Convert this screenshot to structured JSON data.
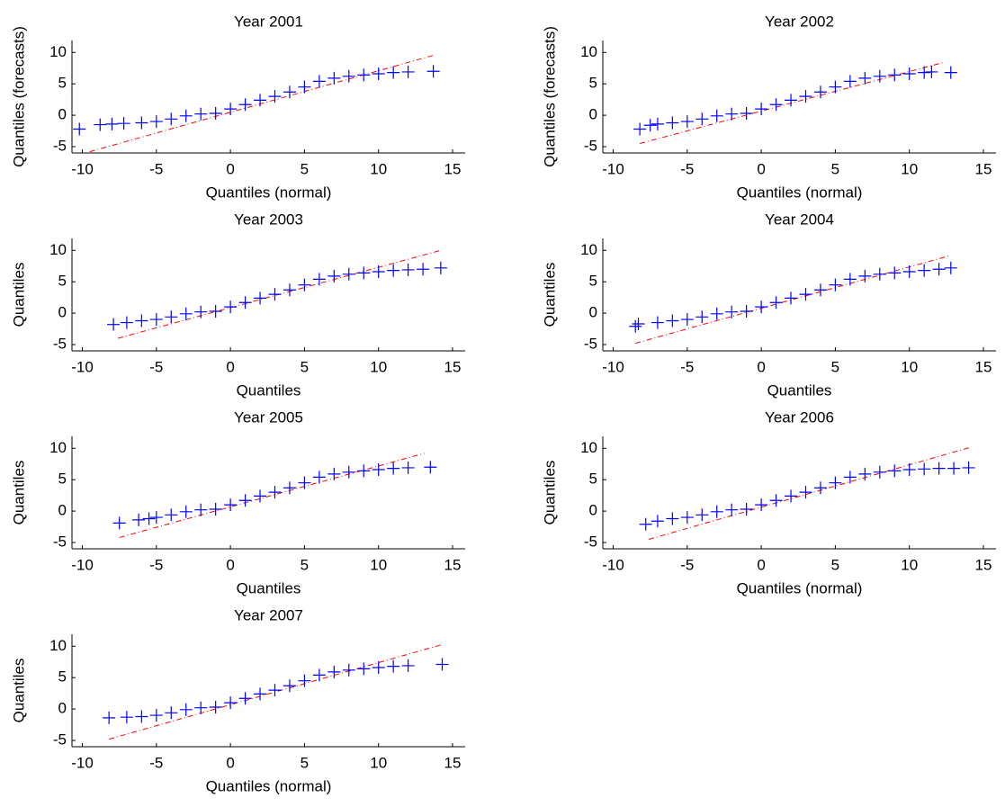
{
  "chart_data": [
    {
      "type": "qq",
      "title": "Year 2001",
      "xlabel": "Quantiles (normal)",
      "ylabel": "Quantiles (forecasts)",
      "x": [
        -10.2,
        -8.8,
        -8.0,
        -7.2,
        -6.0,
        -5.0,
        -4.0,
        -3.0,
        -2.0,
        -1.0,
        0,
        1,
        2,
        3,
        4,
        5,
        6,
        7,
        8,
        9,
        10,
        11,
        12,
        13.7
      ],
      "y": [
        -2.2,
        -1.5,
        -1.4,
        -1.3,
        -1.2,
        -1.0,
        -0.6,
        -0.1,
        0.2,
        0.3,
        1.0,
        1.7,
        2.4,
        3.0,
        3.7,
        4.5,
        5.4,
        5.9,
        6.2,
        6.4,
        6.6,
        6.8,
        6.9,
        7.0
      ],
      "reference_line": {
        "x": [
          -9.5,
          13.8
        ],
        "y": [
          -5.8,
          9.6
        ],
        "color": "#ff0000"
      },
      "color": "#0000ff",
      "xlim": [
        -10.7,
        15.85
      ],
      "ylim": [
        -6,
        11.9
      ],
      "xticks": [
        -10,
        -5,
        0,
        5,
        10,
        15
      ],
      "yticks": [
        -5,
        0,
        5,
        10
      ]
    },
    {
      "type": "qq",
      "title": "Year 2002",
      "xlabel": "Quantiles (normal)",
      "ylabel": "Quantiles (forecasts)",
      "x": [
        -8.2,
        -7.5,
        -7.0,
        -6.0,
        -5.0,
        -4.0,
        -3.0,
        -2.0,
        -1.0,
        0,
        1,
        2,
        3,
        4,
        5,
        6,
        7,
        8,
        9,
        10,
        11,
        11.5,
        12.8
      ],
      "y": [
        -2.2,
        -1.6,
        -1.4,
        -1.2,
        -1.0,
        -0.6,
        -0.1,
        0.2,
        0.3,
        1.0,
        1.7,
        2.4,
        3.0,
        3.7,
        4.5,
        5.4,
        5.9,
        6.2,
        6.4,
        6.6,
        6.8,
        6.9,
        6.8
      ],
      "reference_line": {
        "x": [
          -8.2,
          12.3
        ],
        "y": [
          -4.5,
          8.4
        ],
        "color": "#ff0000"
      },
      "color": "#0000ff",
      "xlim": [
        -10.7,
        15.85
      ],
      "ylim": [
        -6,
        11.9
      ],
      "xticks": [
        -10,
        -5,
        0,
        5,
        10,
        15
      ],
      "yticks": [
        -5,
        0,
        5,
        10
      ]
    },
    {
      "type": "qq",
      "title": "Year 2003",
      "xlabel": "Quantiles",
      "ylabel": "Quantiles",
      "x": [
        -7.9,
        -7.0,
        -6.0,
        -5.0,
        -4.0,
        -3.0,
        -2.0,
        -1.0,
        0,
        1,
        2,
        3,
        4,
        5,
        6,
        7,
        8,
        9,
        10,
        11,
        12,
        13,
        14.2
      ],
      "y": [
        -1.8,
        -1.5,
        -1.2,
        -1.0,
        -0.6,
        -0.1,
        0.2,
        0.3,
        1.0,
        1.7,
        2.4,
        3.0,
        3.7,
        4.5,
        5.4,
        5.9,
        6.2,
        6.4,
        6.6,
        6.8,
        6.9,
        7.0,
        7.2
      ],
      "reference_line": {
        "x": [
          -7.6,
          14.2
        ],
        "y": [
          -4,
          10
        ],
        "color": "#ff0000"
      },
      "color": "#0000ff",
      "xlim": [
        -10.7,
        15.85
      ],
      "ylim": [
        -6,
        11.9
      ],
      "xticks": [
        -10,
        -5,
        0,
        5,
        10,
        15
      ],
      "yticks": [
        -5,
        0,
        5,
        10
      ]
    },
    {
      "type": "qq",
      "title": "Year 2004",
      "xlabel": "Quantiles",
      "ylabel": "Quantiles",
      "x": [
        -8.5,
        -8.3,
        -7.0,
        -6.0,
        -5.0,
        -4.0,
        -3.0,
        -2.0,
        -1.0,
        0,
        1,
        2,
        3,
        4,
        5,
        6,
        7,
        8,
        9,
        10,
        11,
        12,
        12.8
      ],
      "y": [
        -2.1,
        -1.7,
        -1.5,
        -1.2,
        -1.0,
        -0.6,
        -0.1,
        0.2,
        0.3,
        1.0,
        1.7,
        2.4,
        3.0,
        3.7,
        4.5,
        5.4,
        5.9,
        6.2,
        6.4,
        6.6,
        6.8,
        7.0,
        7.2
      ],
      "reference_line": {
        "x": [
          -8.5,
          12.8
        ],
        "y": [
          -4.8,
          9.2
        ],
        "color": "#ff0000"
      },
      "color": "#0000ff",
      "xlim": [
        -10.7,
        15.85
      ],
      "ylim": [
        -6,
        11.9
      ],
      "xticks": [
        -10,
        -5,
        0,
        5,
        10,
        15
      ],
      "yticks": [
        -5,
        0,
        5,
        10
      ]
    },
    {
      "type": "qq",
      "title": "Year 2005",
      "xlabel": "Quantiles",
      "ylabel": "Quantiles",
      "x": [
        -7.5,
        -6.2,
        -5.5,
        -5.0,
        -4.0,
        -3.0,
        -2.0,
        -1.0,
        0,
        1,
        2,
        3,
        4,
        5,
        6,
        7,
        8,
        9,
        10,
        11,
        12,
        13.5
      ],
      "y": [
        -1.9,
        -1.4,
        -1.2,
        -1.0,
        -0.6,
        -0.1,
        0.2,
        0.3,
        1.0,
        1.7,
        2.4,
        3.0,
        3.7,
        4.5,
        5.4,
        5.9,
        6.2,
        6.4,
        6.6,
        6.8,
        6.9,
        7.0
      ],
      "reference_line": {
        "x": [
          -7.5,
          13.1
        ],
        "y": [
          -4.2,
          9.2
        ],
        "color": "#ff0000"
      },
      "color": "#0000ff",
      "xlim": [
        -10.7,
        15.85
      ],
      "ylim": [
        -6,
        11.9
      ],
      "xticks": [
        -10,
        -5,
        0,
        5,
        10,
        15
      ],
      "yticks": [
        -5,
        0,
        5,
        10
      ]
    },
    {
      "type": "qq",
      "title": "Year 2006",
      "xlabel": "Quantiles (normal)",
      "ylabel": "Quantiles",
      "x": [
        -7.8,
        -7.0,
        -6.0,
        -5.0,
        -4.0,
        -3.0,
        -2.0,
        -1.0,
        0,
        1,
        2,
        3,
        4,
        5,
        6,
        7,
        8,
        9,
        10,
        11,
        12,
        13,
        14.0
      ],
      "y": [
        -2.1,
        -1.6,
        -1.2,
        -1.0,
        -0.6,
        -0.1,
        0.2,
        0.3,
        1.0,
        1.7,
        2.4,
        3.0,
        3.7,
        4.5,
        5.4,
        5.9,
        6.2,
        6.4,
        6.6,
        6.7,
        6.8,
        6.8,
        6.9
      ],
      "reference_line": {
        "x": [
          -7.6,
          14.2
        ],
        "y": [
          -4.5,
          10.2
        ],
        "color": "#ff0000"
      },
      "color": "#0000ff",
      "xlim": [
        -10.7,
        15.85
      ],
      "ylim": [
        -6,
        11.9
      ],
      "xticks": [
        -10,
        -5,
        0,
        5,
        10,
        15
      ],
      "yticks": [
        -5,
        0,
        5,
        10
      ]
    },
    {
      "type": "qq",
      "title": "Year 2007",
      "xlabel": "Quantiles (normal)",
      "ylabel": "Quantiles",
      "x": [
        -8.2,
        -7.0,
        -6.0,
        -5.0,
        -4.0,
        -3.0,
        -2.0,
        -1.0,
        0,
        1,
        2,
        3,
        4,
        5,
        6,
        7,
        8,
        9,
        10,
        11,
        12,
        14.3
      ],
      "y": [
        -1.4,
        -1.3,
        -1.2,
        -1.0,
        -0.6,
        -0.1,
        0.2,
        0.3,
        1.0,
        1.7,
        2.4,
        3.0,
        3.7,
        4.5,
        5.4,
        5.9,
        6.2,
        6.4,
        6.6,
        6.8,
        6.9,
        7.1
      ],
      "reference_line": {
        "x": [
          -8.2,
          14.2
        ],
        "y": [
          -4.8,
          10.2
        ],
        "color": "#ff0000"
      },
      "color": "#0000ff",
      "xlim": [
        -10.7,
        15.85
      ],
      "ylim": [
        -6,
        11.9
      ],
      "xticks": [
        -10,
        -5,
        0,
        5,
        10,
        15
      ],
      "yticks": [
        -5,
        0,
        5,
        10
      ]
    }
  ]
}
